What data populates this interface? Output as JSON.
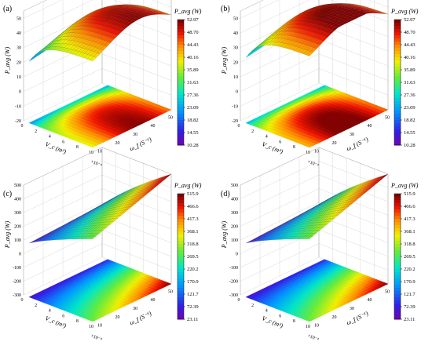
{
  "chart_data": [
    {
      "type": "surface3d",
      "panel_label": "(a)",
      "colorbar": {
        "title": "P_avg (W)",
        "ticks": [
          "52.97",
          "48.70",
          "44.43",
          "40.16",
          "35.89",
          "31.63",
          "27.36",
          "23.09",
          "18.82",
          "14.55",
          "10.28"
        ],
        "range": [
          10.28,
          52.97
        ]
      },
      "z_axis": {
        "label": "P_avg (W)",
        "ticks": [
          "50",
          "40",
          "30",
          "20",
          "10",
          "0",
          "-10",
          "-20"
        ],
        "range": [
          -20,
          55
        ]
      },
      "x_axis": {
        "label": "V_c (m³)",
        "ticks": [
          "0",
          "2",
          "4",
          "6",
          "8",
          "10"
        ],
        "multiplier": "×10⁻⁴"
      },
      "y_axis": {
        "label": "ω_f (S⁻¹)",
        "ticks": [
          "10",
          "20",
          "30",
          "40",
          "50"
        ]
      },
      "surface_range": [
        10.28,
        52.97
      ],
      "peak": 0.6
    },
    {
      "type": "surface3d",
      "panel_label": "(b)",
      "colorbar": {
        "title": "P_avg (W)",
        "ticks": [
          "52.97",
          "48.70",
          "44.43",
          "40.16",
          "35.89",
          "31.63",
          "27.36",
          "23.09",
          "18.82",
          "14.55",
          "10.28"
        ],
        "range": [
          10.28,
          52.97
        ]
      },
      "z_axis": {
        "label": "P_avg (W)",
        "ticks": [
          "50",
          "40",
          "30",
          "20",
          "10",
          "0",
          "-10",
          "-20"
        ],
        "range": [
          -20,
          55
        ]
      },
      "x_axis": {
        "label": "V_c (m³)",
        "ticks": [
          "0",
          "2",
          "4",
          "6",
          "8",
          "10"
        ],
        "multiplier": "×10⁻⁴"
      },
      "y_axis": {
        "label": "ω_f (S⁻¹)",
        "ticks": [
          "10",
          "20",
          "30",
          "40",
          "50"
        ]
      },
      "surface_range": [
        10.28,
        52.97
      ],
      "peak": 0.55
    },
    {
      "type": "surface3d",
      "panel_label": "(c)",
      "colorbar": {
        "title": "P_avg (W)",
        "ticks": [
          "515.9",
          "466.6",
          "417.3",
          "368.1",
          "318.8",
          "269.5",
          "220.2",
          "170.9",
          "121.7",
          "72.39",
          "23.11"
        ],
        "range": [
          23.11,
          515.9
        ]
      },
      "z_axis": {
        "label": "P_avg (W)",
        "ticks": [
          "500",
          "400",
          "300",
          "200",
          "100",
          "0",
          "-100",
          "-200",
          "-300"
        ],
        "range": [
          -300,
          500
        ]
      },
      "x_axis": {
        "label": "V_c (m³)",
        "ticks": [
          "0",
          "2",
          "4",
          "6",
          "8",
          "10"
        ],
        "multiplier": "×10⁻⁴"
      },
      "y_axis": {
        "label": "ω_f (S⁻¹)",
        "ticks": [
          "10",
          "20",
          "30",
          "40",
          "50"
        ]
      },
      "surface_range": [
        23.11,
        515.9
      ],
      "peak": 1.0
    },
    {
      "type": "surface3d",
      "panel_label": "(d)",
      "colorbar": {
        "title": "P_avg (W)",
        "ticks": [
          "515.9",
          "466.6",
          "417.3",
          "368.1",
          "318.8",
          "269.5",
          "220.2",
          "170.9",
          "121.7",
          "72.39",
          "23.11"
        ],
        "range": [
          23.11,
          515.9
        ]
      },
      "z_axis": {
        "label": "P_avg (W)",
        "ticks": [
          "500",
          "400",
          "300",
          "200",
          "100",
          "0",
          "-100",
          "-200",
          "-300"
        ],
        "range": [
          -300,
          500
        ]
      },
      "x_axis": {
        "label": "V_c (m³)",
        "ticks": [
          "0",
          "2",
          "4",
          "6",
          "8",
          "10"
        ],
        "multiplier": "×10⁻⁴"
      },
      "y_axis": {
        "label": "ω_f (S⁻¹)",
        "ticks": [
          "10",
          "20",
          "30",
          "40",
          "50"
        ]
      },
      "surface_range": [
        23.11,
        515.9
      ],
      "peak": 1.0
    }
  ]
}
